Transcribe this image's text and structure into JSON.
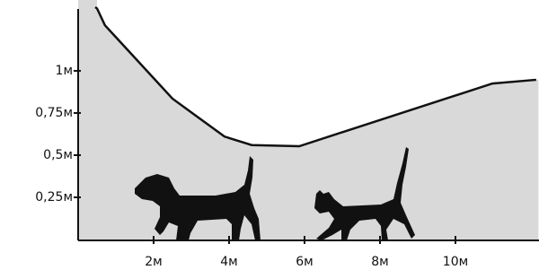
{
  "chart_data": {
    "type": "area",
    "x": [
      0.5,
      0.71,
      2.5,
      3.88,
      4.6,
      5.86,
      10.98,
      12.14
    ],
    "values": [
      1.37,
      1.27,
      0.835,
      0.61,
      0.56,
      0.553,
      0.925,
      0.947
    ],
    "color": "#d9d9d9",
    "line_color": "#111111",
    "xlim": [
      0,
      12.2
    ],
    "ylim": [
      0,
      1.42
    ],
    "xticks": [
      {
        "value": 2,
        "label": "2м"
      },
      {
        "value": 4,
        "label": "4м"
      },
      {
        "value": 6,
        "label": "6м"
      },
      {
        "value": 8,
        "label": "8м"
      },
      {
        "value": 10,
        "label": "10м"
      }
    ],
    "yticks": [
      {
        "value": 0.25,
        "label": "0,25м"
      },
      {
        "value": 0.5,
        "label": "0,5м"
      },
      {
        "value": 0.75,
        "label": "0,75м"
      },
      {
        "value": 1,
        "label": "1м"
      }
    ]
  }
}
